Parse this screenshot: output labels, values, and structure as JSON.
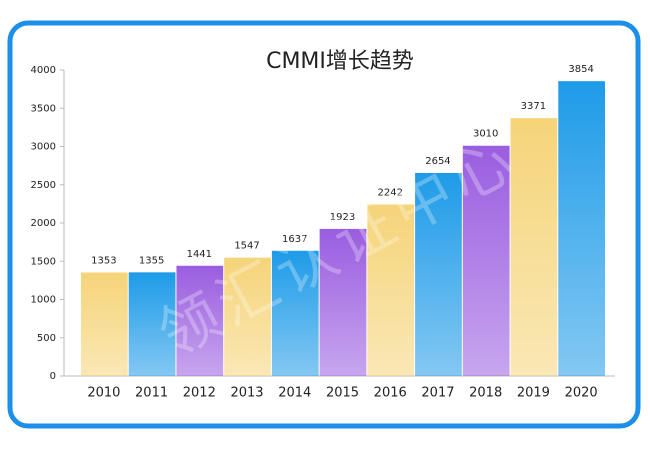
{
  "chart_data": {
    "type": "bar",
    "title": "CMMI增长趋势",
    "watermark": "领汇认证中心",
    "categories": [
      "2010",
      "2011",
      "2012",
      "2013",
      "2014",
      "2015",
      "2016",
      "2017",
      "2018",
      "2019",
      "2020"
    ],
    "values": [
      1353,
      1355,
      1441,
      1547,
      1637,
      1923,
      2242,
      2654,
      3010,
      3371,
      3854
    ],
    "colors": [
      "#f5d479",
      "#1e9be8",
      "#9a5de0",
      "#f5d479",
      "#1e9be8",
      "#9a5de0",
      "#f5d479",
      "#1e9be8",
      "#9a5de0",
      "#f5d479",
      "#1e9be8"
    ],
    "ylim": [
      0,
      4000
    ],
    "yticks": [
      0,
      500,
      1000,
      1500,
      2000,
      2500,
      3000,
      3500,
      4000
    ],
    "grid": false
  }
}
